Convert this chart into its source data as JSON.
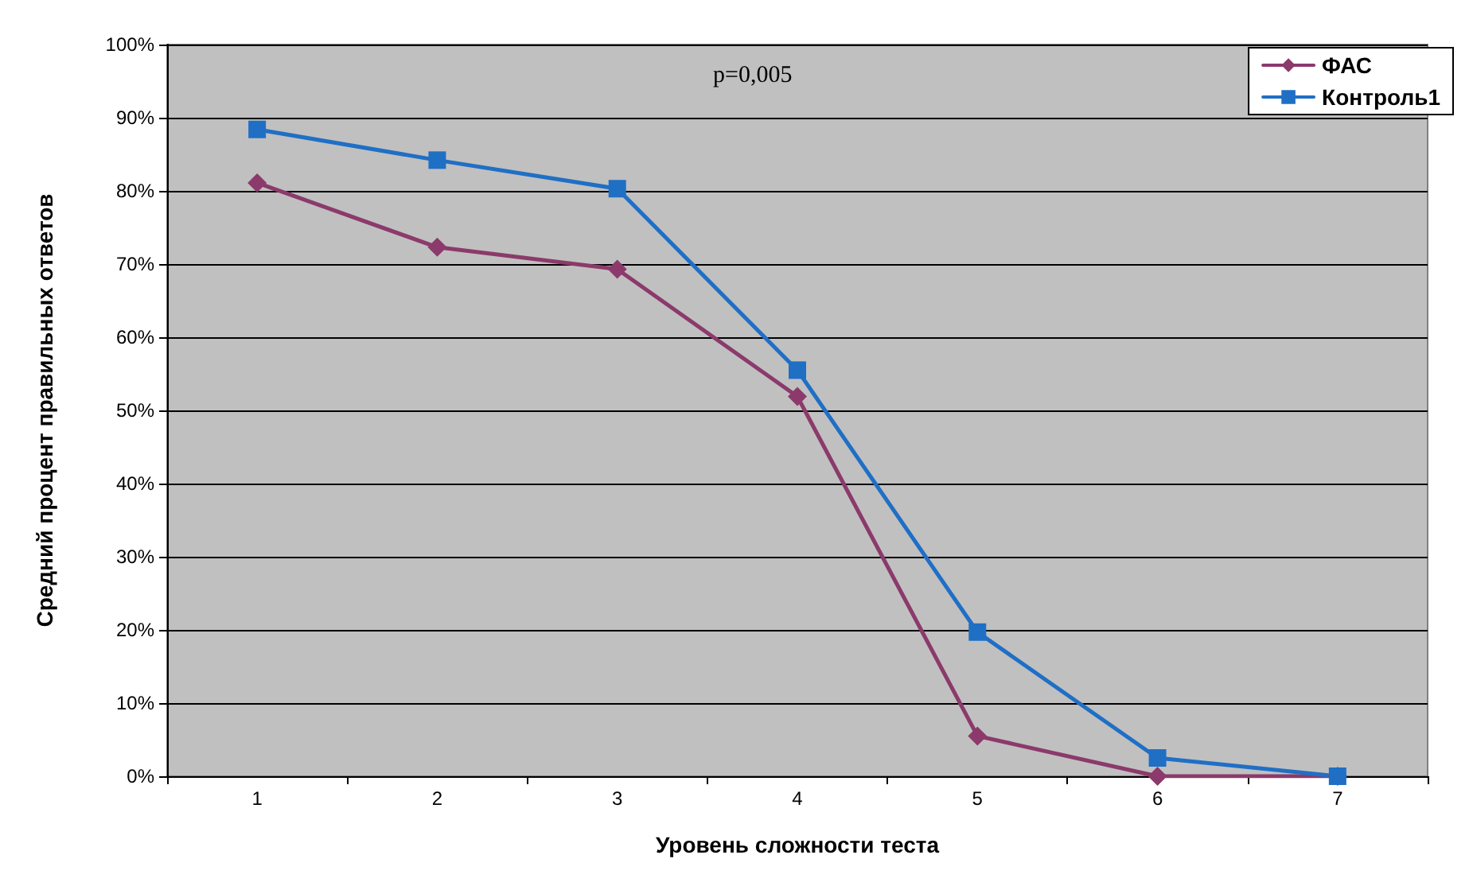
{
  "chart_data": {
    "type": "line",
    "xlabel": "Уровень сложности теста",
    "ylabel": "Средний процент правильных ответов",
    "annotations": [
      "p=0,005"
    ],
    "categories": [
      "1",
      "2",
      "3",
      "4",
      "5",
      "6",
      "7"
    ],
    "series": [
      {
        "name": "ФАС",
        "color": "#8b3a6b",
        "marker": "diamond",
        "values": [
          81.1,
          72.3,
          69.3,
          51.9,
          5.5,
          0,
          0
        ]
      },
      {
        "name": "Контроль1",
        "color": "#1f6fc5",
        "marker": "square",
        "values": [
          88.4,
          84.2,
          80.3,
          55.5,
          19.7,
          2.5,
          0
        ]
      }
    ],
    "ylim": [
      0,
      100
    ],
    "yticks": [
      {
        "value": 0,
        "label": "0%"
      },
      {
        "value": 10,
        "label": "10%"
      },
      {
        "value": 20,
        "label": "20%"
      },
      {
        "value": 30,
        "label": "30%"
      },
      {
        "value": 40,
        "label": "40%"
      },
      {
        "value": 50,
        "label": "50%"
      },
      {
        "value": 60,
        "label": "60%"
      },
      {
        "value": 70,
        "label": "70%"
      },
      {
        "value": 80,
        "label": "80%"
      },
      {
        "value": 90,
        "label": "90%"
      },
      {
        "value": 100,
        "label": "100%"
      }
    ],
    "grid": "y",
    "legend": "top right",
    "line_style": "solid"
  }
}
